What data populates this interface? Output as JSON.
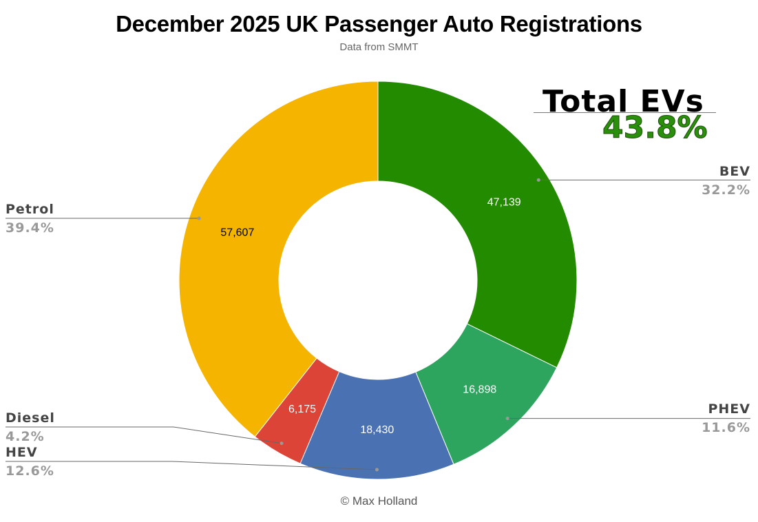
{
  "chart_data": {
    "type": "pie",
    "donut": true,
    "title": "December 2025 UK Passenger Auto Registrations",
    "subtitle": "Data from SMMT",
    "credit": "© Max Holland",
    "annotation": {
      "label": "Total EVs",
      "value": "43.8%"
    },
    "slices": [
      {
        "name": "BEV",
        "value": 47139,
        "value_label": "47,139",
        "percent": "32.2%",
        "color": "#228b00"
      },
      {
        "name": "PHEV",
        "value": 16898,
        "value_label": "16,898",
        "percent": "11.6%",
        "color": "#2ea55e"
      },
      {
        "name": "HEV",
        "value": 18430,
        "value_label": "18,430",
        "percent": "12.6%",
        "color": "#4a72b3"
      },
      {
        "name": "Diesel",
        "value": 6175,
        "value_label": "6,175",
        "percent": "4.2%",
        "color": "#dc4437"
      },
      {
        "name": "Petrol",
        "value": 57607,
        "value_label": "57,607",
        "percent": "39.4%",
        "color": "#f4b400"
      }
    ],
    "legend": "none"
  }
}
